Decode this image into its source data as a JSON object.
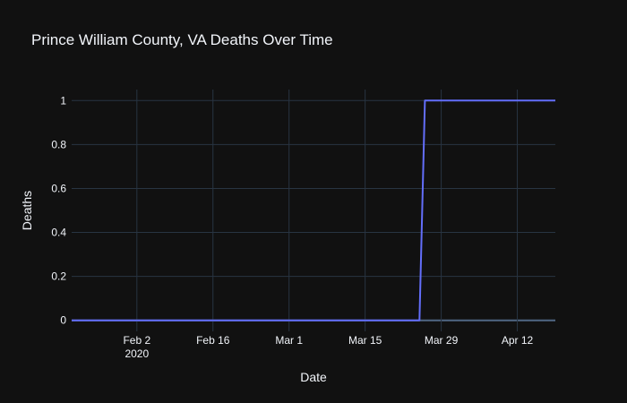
{
  "chart_data": {
    "type": "line",
    "title": "Prince William County, VA Deaths Over Time",
    "xlabel": "Date",
    "ylabel": "Deaths",
    "x_axis_type": "date",
    "xlim": [
      "2020-01-21",
      "2020-04-19"
    ],
    "ylim": [
      -0.05,
      1.05
    ],
    "x_ticks": [
      {
        "date": "2020-02-02",
        "label": "Feb 2",
        "sublabel": "2020"
      },
      {
        "date": "2020-02-16",
        "label": "Feb 16",
        "sublabel": ""
      },
      {
        "date": "2020-03-01",
        "label": "Mar 1",
        "sublabel": ""
      },
      {
        "date": "2020-03-15",
        "label": "Mar 15",
        "sublabel": ""
      },
      {
        "date": "2020-03-29",
        "label": "Mar 29",
        "sublabel": ""
      },
      {
        "date": "2020-04-12",
        "label": "Apr 12",
        "sublabel": ""
      }
    ],
    "y_ticks": [
      {
        "value": 0,
        "label": "0"
      },
      {
        "value": 0.2,
        "label": "0.2"
      },
      {
        "value": 0.4,
        "label": "0.4"
      },
      {
        "value": 0.6,
        "label": "0.6"
      },
      {
        "value": 0.8,
        "label": "0.8"
      },
      {
        "value": 1,
        "label": "1"
      }
    ],
    "grid": true,
    "series": [
      {
        "color": "#636efa",
        "x": [
          "2020-01-21",
          "2020-03-25",
          "2020-03-26",
          "2020-04-19"
        ],
        "y": [
          0,
          0,
          1,
          1
        ]
      }
    ]
  }
}
